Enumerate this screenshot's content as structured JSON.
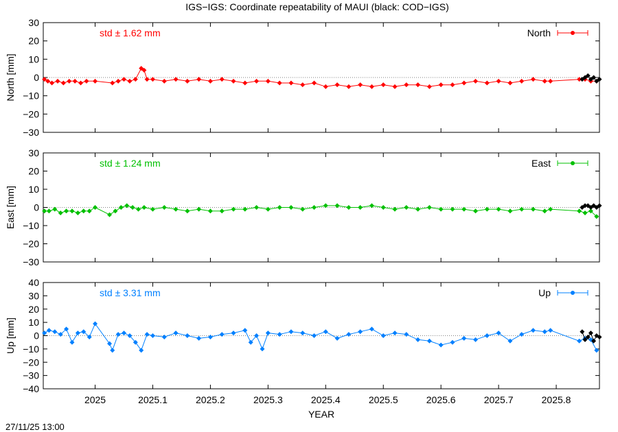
{
  "page": {
    "title": "IGS−IGS: Coordinate repeatability of MAUI (black: COD−IGS)",
    "timestamp": "27/11/25 13:00",
    "xlabel": "YEAR"
  },
  "chart_data": [
    {
      "type": "scatter",
      "panel": "north",
      "ylabel": "North [mm]",
      "ylim": [
        -30,
        30
      ],
      "yticks": [
        -30,
        -20,
        -10,
        0,
        10,
        20,
        30
      ],
      "xlim": [
        2024.91,
        2025.875
      ],
      "xticks": [
        2025,
        2025.1,
        2025.2,
        2025.3,
        2025.4,
        2025.5,
        2025.6,
        2025.7,
        2025.8
      ],
      "std_label": "std ± 1.62 mm",
      "legend": "North",
      "color": "#ff0000",
      "series": [
        {
          "name": "North",
          "x": [
            2024.912,
            2024.918,
            2024.925,
            2024.935,
            2024.945,
            2024.955,
            2024.965,
            2024.975,
            2024.985,
            2025.0,
            2025.03,
            2025.04,
            2025.05,
            2025.06,
            2025.07,
            2025.08,
            2025.085,
            2025.09,
            2025.1,
            2025.12,
            2025.14,
            2025.16,
            2025.18,
            2025.2,
            2025.22,
            2025.24,
            2025.26,
            2025.28,
            2025.3,
            2025.32,
            2025.34,
            2025.36,
            2025.38,
            2025.4,
            2025.42,
            2025.44,
            2025.46,
            2025.48,
            2025.5,
            2025.52,
            2025.54,
            2025.56,
            2025.58,
            2025.6,
            2025.62,
            2025.64,
            2025.66,
            2025.68,
            2025.7,
            2025.72,
            2025.74,
            2025.76,
            2025.78,
            2025.79,
            2025.84,
            2025.85,
            2025.86,
            2025.87
          ],
          "y": [
            -1,
            -2,
            -3,
            -2,
            -3,
            -2,
            -2,
            -3,
            -2,
            -2,
            -3,
            -2,
            -1,
            -2,
            -1,
            5,
            4,
            -1,
            -1,
            -2,
            -1,
            -2,
            -1,
            -2,
            -1,
            -2,
            -3,
            -2,
            -2,
            -3,
            -3,
            -4,
            -3,
            -5,
            -4,
            -5,
            -4,
            -5,
            -4,
            -5,
            -4,
            -4,
            -5,
            -4,
            -4,
            -3,
            -2,
            -3,
            -2,
            -3,
            -2,
            -1,
            -2,
            -2,
            -1,
            -1,
            -2,
            -2
          ]
        },
        {
          "name": "COD-IGS",
          "x": [
            2025.845,
            2025.85,
            2025.855,
            2025.86,
            2025.865,
            2025.87,
            2025.875
          ],
          "y": [
            -1,
            0,
            1,
            -1,
            0,
            -2,
            -1
          ]
        }
      ]
    },
    {
      "type": "scatter",
      "panel": "east",
      "ylabel": "East [mm]",
      "ylim": [
        -30,
        30
      ],
      "yticks": [
        -30,
        -20,
        -10,
        0,
        10,
        20,
        30
      ],
      "xlim": [
        2024.91,
        2025.875
      ],
      "xticks": [
        2025,
        2025.1,
        2025.2,
        2025.3,
        2025.4,
        2025.5,
        2025.6,
        2025.7,
        2025.8
      ],
      "std_label": "std ± 1.24 mm",
      "legend": "East",
      "color": "#00c000",
      "series": [
        {
          "name": "East",
          "x": [
            2024.912,
            2024.92,
            2024.93,
            2024.94,
            2024.95,
            2024.96,
            2024.97,
            2024.98,
            2024.99,
            2025.0,
            2025.025,
            2025.035,
            2025.045,
            2025.055,
            2025.065,
            2025.075,
            2025.085,
            2025.1,
            2025.12,
            2025.14,
            2025.16,
            2025.18,
            2025.2,
            2025.22,
            2025.24,
            2025.26,
            2025.28,
            2025.3,
            2025.32,
            2025.34,
            2025.36,
            2025.38,
            2025.4,
            2025.42,
            2025.44,
            2025.46,
            2025.48,
            2025.5,
            2025.52,
            2025.54,
            2025.56,
            2025.58,
            2025.6,
            2025.62,
            2025.64,
            2025.66,
            2025.68,
            2025.7,
            2025.72,
            2025.74,
            2025.76,
            2025.78,
            2025.79,
            2025.84,
            2025.85,
            2025.86,
            2025.87
          ],
          "y": [
            -2,
            -2,
            -1,
            -3,
            -2,
            -2,
            -3,
            -2,
            -2,
            0,
            -4,
            -2,
            0,
            1,
            0,
            -1,
            0,
            -1,
            0,
            -1,
            -2,
            -1,
            -2,
            -2,
            -1,
            -1,
            0,
            -1,
            0,
            0,
            -1,
            0,
            1,
            1,
            0,
            0,
            1,
            0,
            -1,
            0,
            -1,
            0,
            -1,
            -1,
            -1,
            -2,
            -1,
            -1,
            -2,
            -1,
            -1,
            -2,
            -1,
            -2,
            -3,
            -2,
            -5
          ]
        },
        {
          "name": "COD-IGS",
          "x": [
            2025.845,
            2025.85,
            2025.855,
            2025.86,
            2025.865,
            2025.87,
            2025.875
          ],
          "y": [
            0,
            1,
            1,
            0,
            1,
            0,
            1
          ]
        }
      ]
    },
    {
      "type": "scatter",
      "panel": "up",
      "ylabel": "Up [mm]",
      "ylim": [
        -40,
        40
      ],
      "yticks": [
        -40,
        -30,
        -20,
        -10,
        0,
        10,
        20,
        30,
        40
      ],
      "xlim": [
        2024.91,
        2025.875
      ],
      "xticks": [
        2025,
        2025.1,
        2025.2,
        2025.3,
        2025.4,
        2025.5,
        2025.6,
        2025.7,
        2025.8
      ],
      "std_label": "std ± 3.31 mm",
      "legend": "Up",
      "color": "#0080ff",
      "series": [
        {
          "name": "Up",
          "x": [
            2024.912,
            2024.92,
            2024.93,
            2024.94,
            2024.95,
            2024.96,
            2024.97,
            2024.98,
            2024.99,
            2025.0,
            2025.025,
            2025.03,
            2025.04,
            2025.05,
            2025.06,
            2025.07,
            2025.08,
            2025.09,
            2025.1,
            2025.12,
            2025.14,
            2025.16,
            2025.18,
            2025.2,
            2025.22,
            2025.24,
            2025.26,
            2025.27,
            2025.28,
            2025.29,
            2025.3,
            2025.32,
            2025.34,
            2025.36,
            2025.38,
            2025.4,
            2025.42,
            2025.44,
            2025.46,
            2025.48,
            2025.5,
            2025.52,
            2025.54,
            2025.56,
            2025.58,
            2025.6,
            2025.62,
            2025.64,
            2025.66,
            2025.68,
            2025.7,
            2025.72,
            2025.74,
            2025.76,
            2025.78,
            2025.79,
            2025.84,
            2025.85,
            2025.86,
            2025.87
          ],
          "y": [
            2,
            4,
            3,
            1,
            5,
            -5,
            2,
            3,
            -1,
            9,
            -6,
            -11,
            1,
            2,
            0,
            -5,
            -11,
            1,
            0,
            -1,
            2,
            0,
            -2,
            -1,
            1,
            2,
            4,
            -5,
            0,
            -10,
            2,
            1,
            3,
            2,
            0,
            3,
            -2,
            1,
            3,
            5,
            0,
            2,
            1,
            -3,
            -4,
            -7,
            -5,
            -2,
            -3,
            0,
            2,
            -4,
            1,
            4,
            3,
            4,
            -4,
            -2,
            -3,
            -11
          ]
        },
        {
          "name": "COD-IGS",
          "x": [
            2025.845,
            2025.85,
            2025.855,
            2025.86,
            2025.865,
            2025.87,
            2025.875
          ],
          "y": [
            3,
            -3,
            -1,
            2,
            -4,
            0,
            -1
          ]
        }
      ]
    }
  ]
}
